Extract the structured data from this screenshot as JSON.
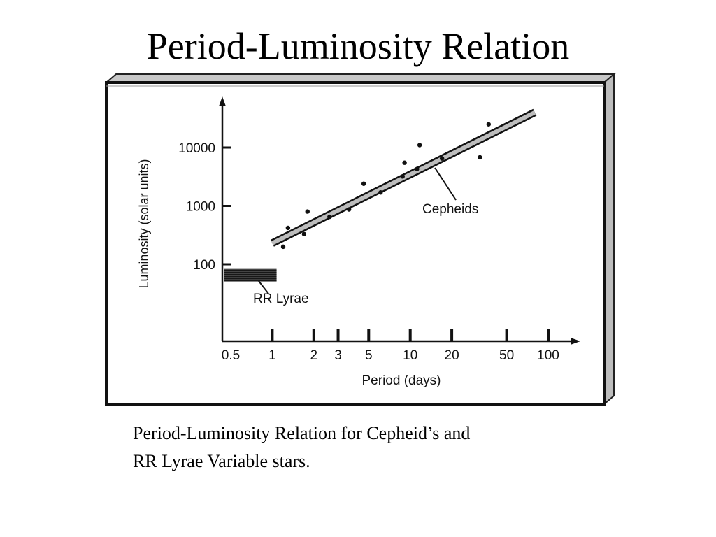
{
  "slide": {
    "title": "Period-Luminosity Relation",
    "caption_line1": "Period-Luminosity Relation for Cepheid’s and",
    "caption_line2": "RR Lyrae Variable stars."
  },
  "chart_data": {
    "type": "scatter",
    "title": "",
    "xlabel": "Period (days)",
    "ylabel": "Luminosity (solar units)",
    "x_scale": "log",
    "y_scale": "log",
    "xlim": [
      0.5,
      100
    ],
    "ylim": [
      20,
      30000
    ],
    "x_ticks": [
      0.5,
      1,
      2,
      3,
      5,
      10,
      20,
      50,
      100
    ],
    "x_tick_labels": [
      "0.5",
      "1",
      "2",
      "3",
      "5",
      "10",
      "20",
      "50",
      "100"
    ],
    "y_ticks": [
      100,
      1000,
      10000
    ],
    "y_tick_labels": [
      "100",
      "1000",
      "10000"
    ],
    "grid": false,
    "series": [
      {
        "name": "Cepheids",
        "kind": "scatter",
        "x": [
          1.2,
          1.3,
          1.7,
          1.8,
          2.6,
          3.6,
          4.6,
          6.1,
          8.8,
          9.1,
          11.2,
          11.7,
          17,
          32,
          37
        ],
        "y": [
          200,
          420,
          330,
          800,
          650,
          870,
          2400,
          1700,
          3200,
          5500,
          4300,
          11000,
          6500,
          6800,
          25000
        ]
      },
      {
        "name": "Cepheids",
        "kind": "trend_band",
        "x": [
          1,
          80
        ],
        "y": [
          230,
          40000
        ]
      },
      {
        "name": "RR Lyrae",
        "kind": "band",
        "x": [
          0.5,
          1.1
        ],
        "y": [
          65,
          65
        ]
      }
    ],
    "annotations": [
      {
        "text": "Cepheids",
        "points_to": "trend_band"
      },
      {
        "text": "RR Lyrae",
        "points_to": "band"
      }
    ]
  }
}
